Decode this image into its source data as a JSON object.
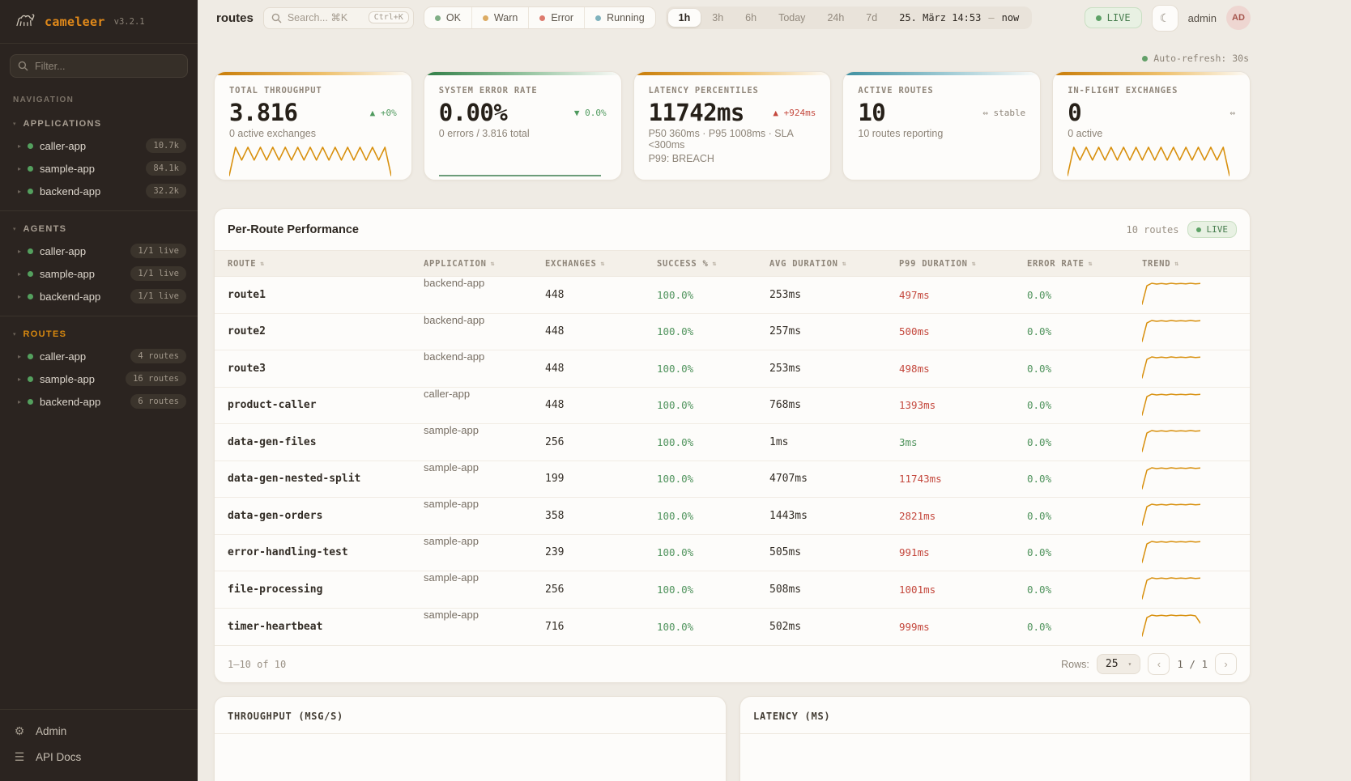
{
  "colors": {
    "orange": "#d8900e",
    "green": "#4f9a5e",
    "red": "#c4483d",
    "teal": "#4f96a6",
    "grey": "#8d8478"
  },
  "sidebar": {
    "brand": {
      "name": "cameleer",
      "version": "v3.2.1"
    },
    "filter_placeholder": "Filter...",
    "nav_caption": "NAVIGATION",
    "groups": [
      {
        "label": "APPLICATIONS",
        "active": false,
        "items": [
          {
            "name": "caller-app",
            "badge": "10.7k"
          },
          {
            "name": "sample-app",
            "badge": "84.1k"
          },
          {
            "name": "backend-app",
            "badge": "32.2k"
          }
        ]
      },
      {
        "label": "AGENTS",
        "active": false,
        "items": [
          {
            "name": "caller-app",
            "badge": "1/1 live"
          },
          {
            "name": "sample-app",
            "badge": "1/1 live"
          },
          {
            "name": "backend-app",
            "badge": "1/1 live"
          }
        ]
      },
      {
        "label": "ROUTES",
        "active": true,
        "items": [
          {
            "name": "caller-app",
            "badge": "4 routes"
          },
          {
            "name": "sample-app",
            "badge": "16 routes"
          },
          {
            "name": "backend-app",
            "badge": "6 routes"
          }
        ]
      }
    ],
    "footer_items": [
      {
        "icon": "gear",
        "label": "Admin"
      },
      {
        "icon": "menu",
        "label": "API Docs"
      }
    ]
  },
  "header": {
    "breadcrumb": "routes",
    "search": {
      "placeholder": "Search... ⌘K",
      "shortcut": "Ctrl+K"
    },
    "status_filters": [
      {
        "label": "OK",
        "color": "#7fae85"
      },
      {
        "label": "Warn",
        "color": "#dcab63"
      },
      {
        "label": "Error",
        "color": "#dd7a6d"
      },
      {
        "label": "Running",
        "color": "#7fb2bd"
      }
    ],
    "time_ranges": [
      "1h",
      "3h",
      "6h",
      "Today",
      "24h",
      "7d"
    ],
    "active_range": "1h",
    "time_from": "25. März 14:53",
    "time_sep": "—",
    "time_to": "now",
    "live_label": "LIVE",
    "user": "admin",
    "avatar": "AD"
  },
  "toolbar": {
    "auto_refresh": "Auto-refresh: 30s"
  },
  "kpis": [
    {
      "label": "TOTAL THROUGHPUT",
      "value": "3.816",
      "delta": "▲ +0%",
      "delta_color": "green",
      "sub": "0 active exchanges",
      "accent": "orange",
      "spark": "zigzag"
    },
    {
      "label": "SYSTEM ERROR RATE",
      "value": "0.00%",
      "delta": "▼ 0.0%",
      "delta_color": "green",
      "sub": "0 errors / 3.816 total",
      "accent": "green",
      "spark": "flat"
    },
    {
      "label": "LATENCY PERCENTILES",
      "value": "11742ms",
      "delta": "▲ +924ms",
      "delta_color": "red",
      "sub": "P50 360ms · P95 1008ms · SLA <300ms",
      "sub2": "P99: BREACH",
      "accent": "orange",
      "spark": "none"
    },
    {
      "label": "ACTIVE ROUTES",
      "value": "10",
      "delta": "⇔ stable",
      "delta_color": "grey",
      "sub": "10 routes reporting",
      "accent": "teal",
      "spark": "none"
    },
    {
      "label": "IN-FLIGHT EXCHANGES",
      "value": "0",
      "delta": "⇔",
      "delta_color": "grey",
      "sub": "0 active",
      "accent": "orange",
      "spark": "zigzag"
    }
  ],
  "table": {
    "title": "Per-Route Performance",
    "meta_count": "10 routes",
    "live_label": "LIVE",
    "columns": [
      "ROUTE",
      "APPLICATION",
      "EXCHANGES",
      "SUCCESS %",
      "AVG DURATION",
      "P99 DURATION",
      "ERROR RATE",
      "TREND"
    ],
    "rows": [
      {
        "route": "route1",
        "app": "backend-app",
        "exchanges": "448",
        "success": "100.0%",
        "avg": "253ms",
        "p99": "497ms",
        "p99_status": "bad",
        "error": "0.0%",
        "trend": "plateau"
      },
      {
        "route": "route2",
        "app": "backend-app",
        "exchanges": "448",
        "success": "100.0%",
        "avg": "257ms",
        "p99": "500ms",
        "p99_status": "bad",
        "error": "0.0%",
        "trend": "plateau"
      },
      {
        "route": "route3",
        "app": "backend-app",
        "exchanges": "448",
        "success": "100.0%",
        "avg": "253ms",
        "p99": "498ms",
        "p99_status": "bad",
        "error": "0.0%",
        "trend": "plateau"
      },
      {
        "route": "product-caller",
        "app": "caller-app",
        "exchanges": "448",
        "success": "100.0%",
        "avg": "768ms",
        "p99": "1393ms",
        "p99_status": "bad",
        "error": "0.0%",
        "trend": "plateau"
      },
      {
        "route": "data-gen-files",
        "app": "sample-app",
        "exchanges": "256",
        "success": "100.0%",
        "avg": "1ms",
        "p99": "3ms",
        "p99_status": "good",
        "error": "0.0%",
        "trend": "plateau"
      },
      {
        "route": "data-gen-nested-split",
        "app": "sample-app",
        "exchanges": "199",
        "success": "100.0%",
        "avg": "4707ms",
        "p99": "11743ms",
        "p99_status": "bad",
        "error": "0.0%",
        "trend": "plateau"
      },
      {
        "route": "data-gen-orders",
        "app": "sample-app",
        "exchanges": "358",
        "success": "100.0%",
        "avg": "1443ms",
        "p99": "2821ms",
        "p99_status": "bad",
        "error": "0.0%",
        "trend": "plateau"
      },
      {
        "route": "error-handling-test",
        "app": "sample-app",
        "exchanges": "239",
        "success": "100.0%",
        "avg": "505ms",
        "p99": "991ms",
        "p99_status": "bad",
        "error": "0.0%",
        "trend": "plateau"
      },
      {
        "route": "file-processing",
        "app": "sample-app",
        "exchanges": "256",
        "success": "100.0%",
        "avg": "508ms",
        "p99": "1001ms",
        "p99_status": "bad",
        "error": "0.0%",
        "trend": "plateau"
      },
      {
        "route": "timer-heartbeat",
        "app": "sample-app",
        "exchanges": "716",
        "success": "100.0%",
        "avg": "502ms",
        "p99": "999ms",
        "p99_status": "bad",
        "error": "0.0%",
        "trend": "dip"
      }
    ],
    "footer": {
      "range": "1–10 of 10",
      "rows_label": "Rows:",
      "rows_value": "25",
      "prev": "‹",
      "page": "1 / 1",
      "next": "›"
    }
  },
  "panels": [
    {
      "title": "THROUGHPUT (MSG/S)"
    },
    {
      "title": "LATENCY (MS)"
    }
  ],
  "sparklines": {
    "kpi_zigzag": [
      0,
      100,
      55,
      100,
      55,
      100,
      55,
      100,
      55,
      100,
      55,
      100,
      55,
      100,
      55,
      100,
      55,
      100,
      55,
      100,
      55,
      100,
      55,
      100,
      55,
      100,
      0
    ],
    "kpi_flat": [
      0,
      0
    ],
    "row_plateau": [
      0,
      88,
      100,
      96,
      99,
      96,
      100,
      97,
      99,
      97,
      100,
      97,
      99
    ],
    "row_dip": [
      0,
      88,
      100,
      96,
      99,
      96,
      100,
      97,
      99,
      97,
      100,
      96,
      62
    ]
  }
}
